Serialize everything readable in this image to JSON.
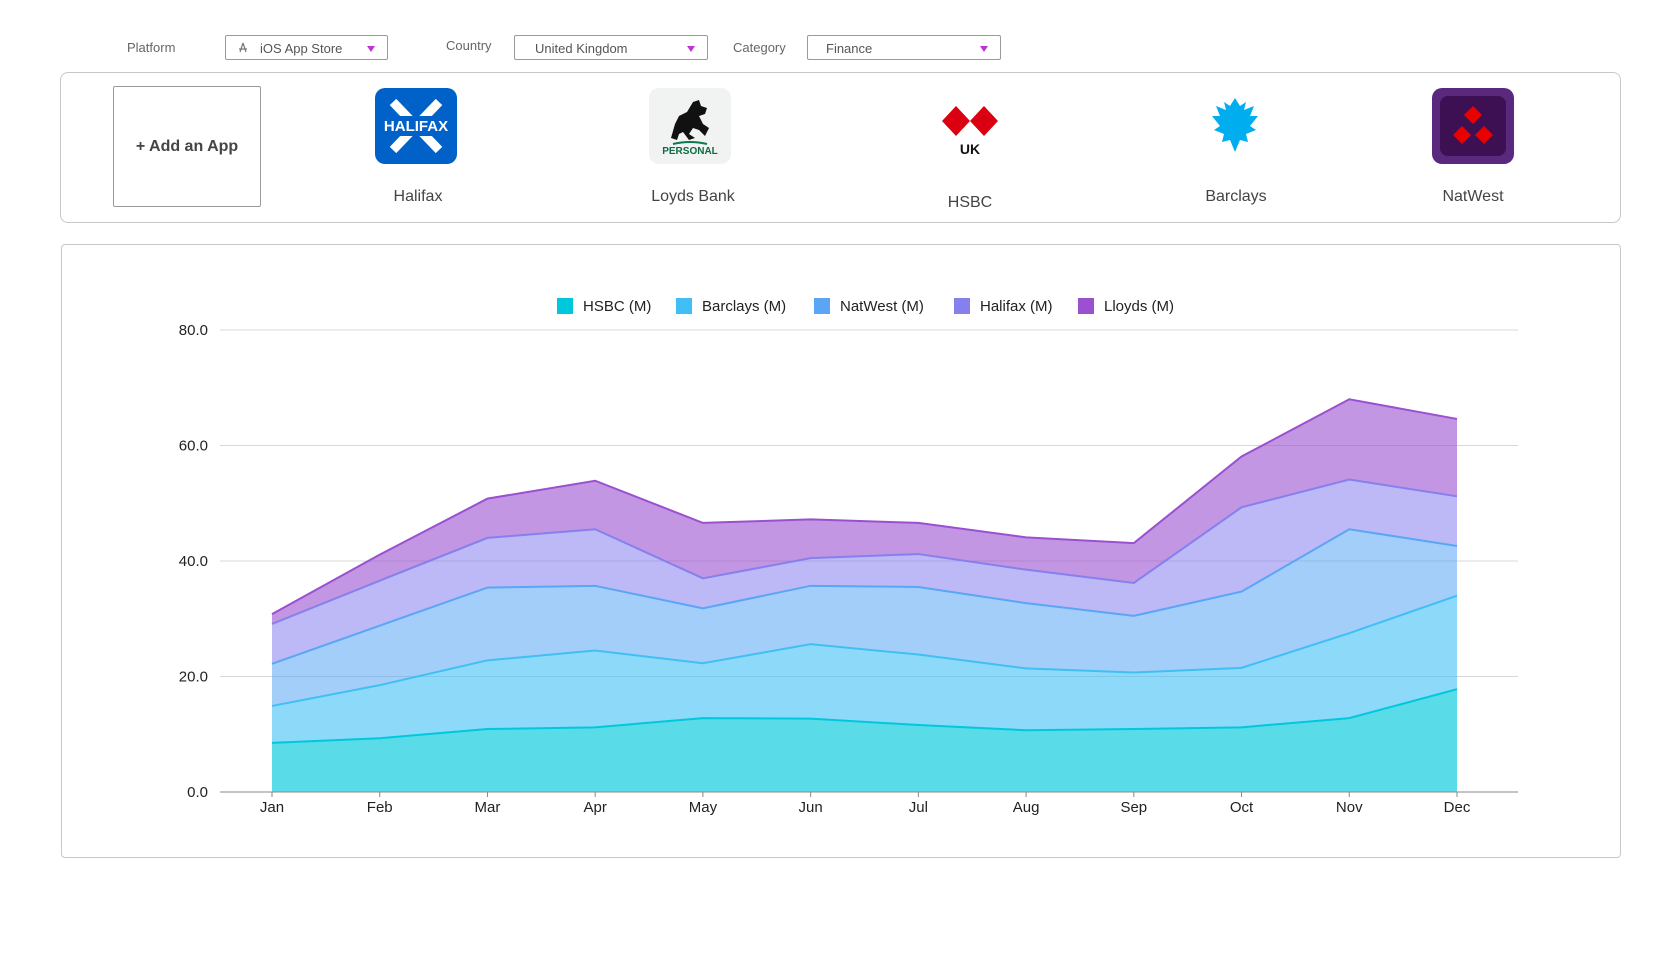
{
  "filters": {
    "platform": {
      "label": "Platform",
      "value": "iOS App Store"
    },
    "country": {
      "label": "Country",
      "value": "United Kingdom"
    },
    "category": {
      "label": "Category",
      "value": "Finance"
    }
  },
  "apps": {
    "add_label": "+ Add an App",
    "items": [
      {
        "name": "Halifax",
        "icon_text": "HALIFAX"
      },
      {
        "name": "Loyds Bank",
        "icon_text": "PERSONAL"
      },
      {
        "name": "HSBC",
        "icon_text": "UK"
      },
      {
        "name": "Barclays"
      },
      {
        "name": "NatWest"
      }
    ]
  },
  "colors": {
    "accent_arrow": "#c230d8",
    "hsbc": "#00c8dc",
    "barclays": "#40bff5",
    "natwest": "#5aa5f6",
    "halifax": "#8580ee",
    "lloyds": "#9a50d0"
  },
  "chart_data": {
    "type": "area",
    "stacked": true,
    "categories": [
      "Jan",
      "Feb",
      "Mar",
      "Apr",
      "May",
      "Jun",
      "Jul",
      "Aug",
      "Sep",
      "Oct",
      "Nov",
      "Dec"
    ],
    "ylim": [
      0,
      80
    ],
    "yticks": [
      "0.0",
      "20.0",
      "40.0",
      "60.0",
      "80.0"
    ],
    "grid": true,
    "legend_position": "top",
    "series": [
      {
        "name": "HSBC (M)",
        "values": [
          8.5,
          9.3,
          10.9,
          11.2,
          12.8,
          12.7,
          11.6,
          10.7,
          10.9,
          11.2,
          12.8,
          17.8
        ]
      },
      {
        "name": "Barclays (M)",
        "values": [
          6.4,
          9.2,
          11.9,
          13.3,
          9.5,
          12.9,
          12.2,
          10.7,
          9.8,
          10.3,
          14.7,
          16.2
        ]
      },
      {
        "name": "NatWest (M)",
        "values": [
          7.3,
          10.3,
          12.6,
          11.2,
          9.5,
          10.1,
          11.7,
          11.3,
          9.8,
          13.2,
          18.0,
          8.6
        ]
      },
      {
        "name": "Halifax (M)",
        "values": [
          6.9,
          7.8,
          8.6,
          9.8,
          5.2,
          4.8,
          5.7,
          5.8,
          5.7,
          14.6,
          8.6,
          8.6
        ]
      },
      {
        "name": "Lloyds (M)",
        "values": [
          1.7,
          4.5,
          6.8,
          8.4,
          9.6,
          6.7,
          5.4,
          5.6,
          6.9,
          8.8,
          13.9,
          13.4
        ]
      }
    ]
  }
}
